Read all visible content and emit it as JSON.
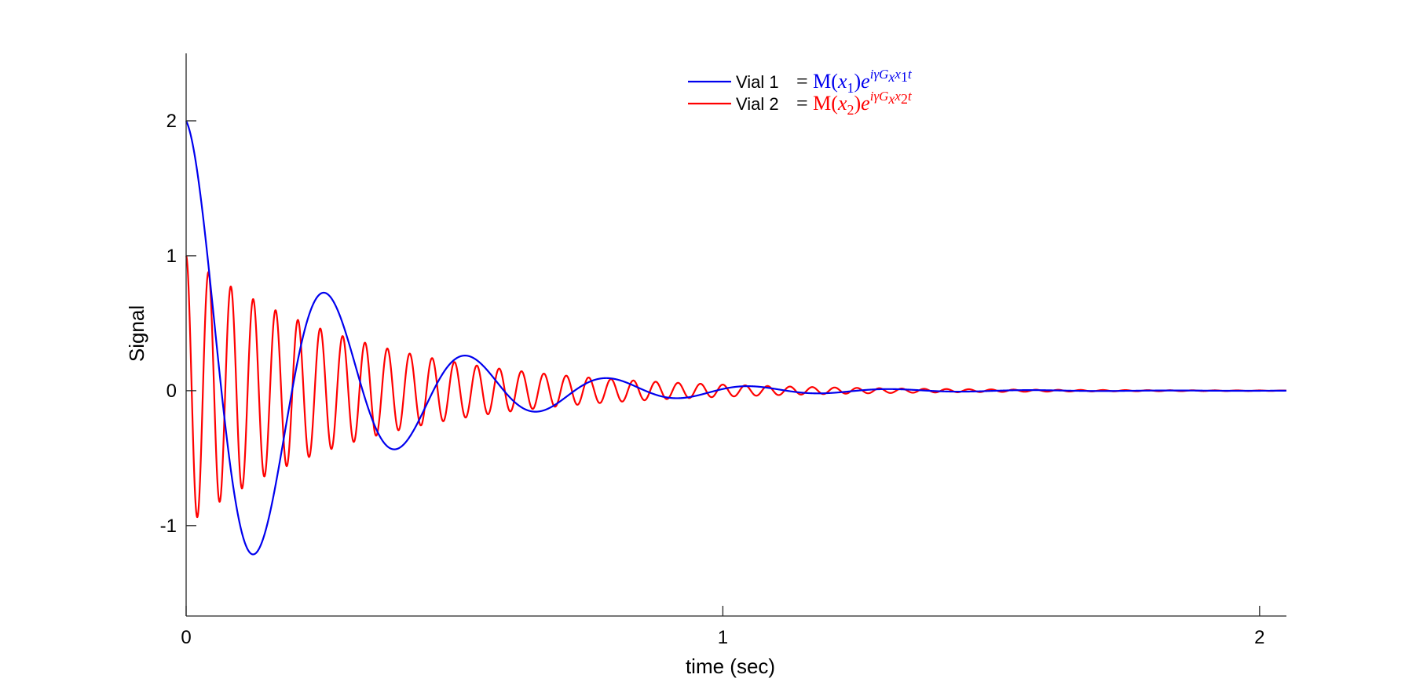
{
  "chart_data": {
    "type": "line",
    "xlabel": "time (sec)",
    "ylabel": "Signal",
    "xlim": [
      0,
      2.05
    ],
    "ylim": [
      -1.67,
      2.5
    ],
    "xticks": [
      0,
      1,
      2
    ],
    "yticks": [
      -1,
      0,
      1,
      2
    ],
    "xtick_labels": [
      "0",
      "1",
      "2"
    ],
    "ytick_labels": [
      "-1",
      "0",
      "1",
      "2"
    ],
    "grid": false,
    "legend_position": "top-center",
    "series": [
      {
        "name": "Vial 1",
        "color": "#0000ee",
        "equation": {
          "m": "M",
          "sub": "1",
          "exp_sub": "1"
        },
        "amplitude": 2,
        "frequency_hz": 3.8,
        "decay_rate": 3.9,
        "extrema": [
          {
            "x": 0,
            "y": 2
          },
          {
            "x": 0.125,
            "y": -1.33
          },
          {
            "x": 0.255,
            "y": 0.89
          },
          {
            "x": 0.385,
            "y": -0.59
          },
          {
            "x": 0.515,
            "y": 0.39
          },
          {
            "x": 0.65,
            "y": -0.26
          },
          {
            "x": 0.78,
            "y": 0.17
          },
          {
            "x": 0.91,
            "y": -0.11
          },
          {
            "x": 1.04,
            "y": 0.08
          },
          {
            "x": 1.17,
            "y": -0.05
          },
          {
            "x": 1.3,
            "y": 0.03
          }
        ]
      },
      {
        "name": "Vial 2",
        "color": "#ff0000",
        "equation": {
          "m": "M",
          "sub": "2",
          "exp_sub": "2"
        },
        "amplitude": 1,
        "frequency_hz": 24,
        "decay_rate": 3.1,
        "extrema": [
          {
            "x": 0,
            "y": 1
          },
          {
            "x": 0.02,
            "y": -0.94
          },
          {
            "x": 0.042,
            "y": 0.88
          },
          {
            "x": 0.063,
            "y": -0.82
          },
          {
            "x": 0.083,
            "y": 0.77
          },
          {
            "x": 0.125,
            "y": 0.68
          },
          {
            "x": 0.166,
            "y": 0.6
          },
          {
            "x": 0.25,
            "y": 0.46
          },
          {
            "x": 0.5,
            "y": 0.21
          },
          {
            "x": 0.75,
            "y": 0.1
          },
          {
            "x": 1.0,
            "y": 0.05
          }
        ]
      }
    ]
  }
}
